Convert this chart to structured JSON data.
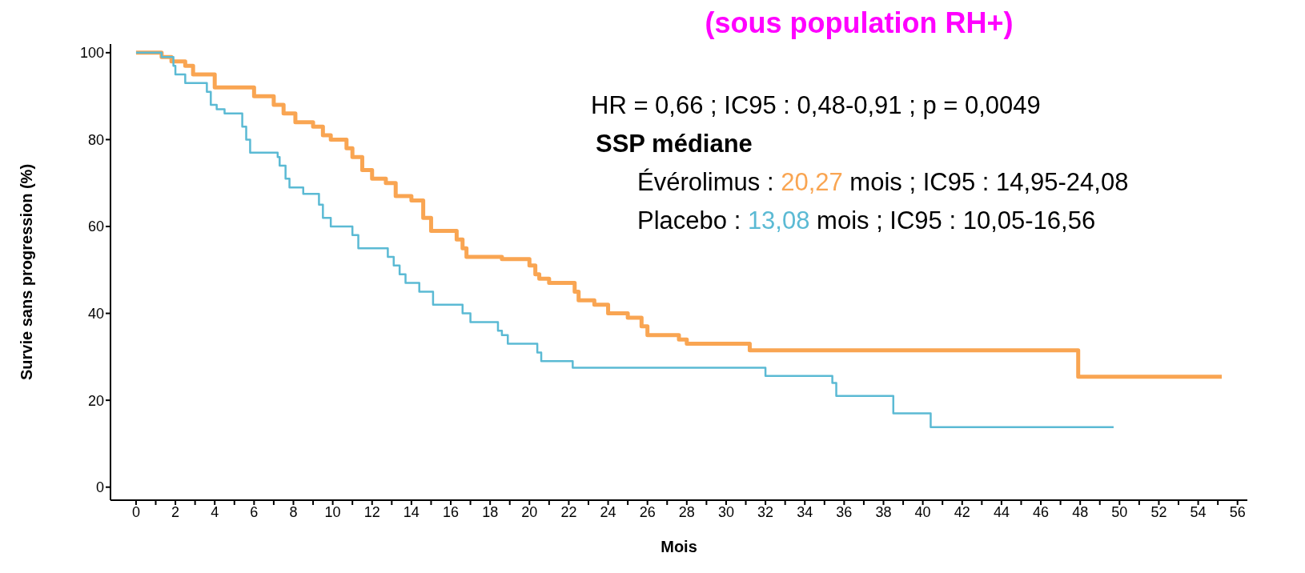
{
  "chart_data": {
    "type": "step",
    "title": "(sous population RH+)",
    "xlabel": "Mois",
    "ylabel": "Survie sans progression (%)",
    "xlim": [
      -1.3,
      56.5
    ],
    "ylim": [
      -3,
      102
    ],
    "xticks": [
      0,
      {
        "value": 1,
        "label": null
      },
      2,
      {
        "value": 3,
        "label": null
      },
      4,
      {
        "value": 5,
        "label": null
      },
      6,
      {
        "value": 7,
        "label": null
      },
      8,
      {
        "value": 9,
        "label": null
      },
      10,
      {
        "value": 11,
        "label": null
      },
      12,
      {
        "value": 13,
        "label": null
      },
      14,
      {
        "value": 15,
        "label": null
      },
      16,
      {
        "value": 17,
        "label": null
      },
      18,
      {
        "value": 19,
        "label": null
      },
      20,
      {
        "value": 21,
        "label": null
      },
      22,
      {
        "value": 23,
        "label": null
      },
      24,
      {
        "value": 25,
        "label": null
      },
      26,
      {
        "value": 27,
        "label": null
      },
      28,
      {
        "value": 29,
        "label": null
      },
      30,
      {
        "value": 31,
        "label": null
      },
      32,
      {
        "value": 33,
        "label": null
      },
      34,
      {
        "value": 35,
        "label": null
      },
      36,
      {
        "value": 37,
        "label": null
      },
      38,
      {
        "value": 39,
        "label": null
      },
      40,
      {
        "value": 41,
        "label": null
      },
      42,
      {
        "value": 43,
        "label": null
      },
      44,
      {
        "value": 45,
        "label": null
      },
      46,
      {
        "value": 47,
        "label": null
      },
      48,
      {
        "value": 49,
        "label": null
      },
      50,
      {
        "value": 51,
        "label": null
      },
      52,
      {
        "value": 53,
        "label": null
      },
      54,
      {
        "value": 55,
        "label": null
      },
      56
    ],
    "yticks": [
      0,
      20,
      40,
      60,
      80,
      100
    ],
    "marker": "none",
    "line_style": "solid",
    "series": [
      {
        "color": "#f9a552",
        "x": [
          0,
          1.3,
          1.8,
          2.5,
          2.9,
          4,
          6,
          7,
          7.5,
          8.1,
          9,
          9.5,
          9.9,
          10.7,
          11,
          11.5,
          12,
          12.7,
          13.2,
          14,
          14.6,
          15,
          16.3,
          16.6,
          16.8,
          18.6,
          20,
          20.3,
          20.5,
          21,
          22.3,
          22.5,
          23.3,
          24,
          25,
          25.7,
          26,
          27.6,
          28,
          31.2,
          47.9,
          55.2
        ],
        "values": [
          100,
          99,
          98,
          97,
          95,
          92,
          90,
          88,
          86,
          84,
          83,
          81,
          80,
          78,
          76,
          73,
          71,
          70,
          67,
          66,
          62,
          59,
          57,
          55,
          53,
          52.5,
          51,
          49,
          48,
          47,
          45,
          43,
          42,
          40,
          39,
          37,
          35,
          34,
          33,
          31.5,
          25.4,
          25.4
        ]
      },
      {
        "color": "#5bbad4",
        "x": [
          0,
          1.3,
          1.9,
          2,
          2.5,
          3.6,
          3.8,
          4.1,
          4.5,
          5.4,
          5.6,
          5.8,
          7.2,
          7.3,
          7.6,
          7.8,
          8.5,
          9.3,
          9.5,
          9.9,
          11,
          11.3,
          12.8,
          13.1,
          13.4,
          13.7,
          14.4,
          15.1,
          16.6,
          17,
          18.4,
          18.6,
          18.9,
          20.4,
          20.6,
          22.2,
          32,
          35.4,
          35.6,
          38.5,
          40.4,
          49.7
        ],
        "values": [
          100,
          99,
          97,
          95,
          93,
          91,
          88,
          87,
          86,
          83,
          80,
          77,
          76,
          74,
          71,
          69,
          67.5,
          65,
          62,
          60,
          58,
          55,
          53,
          51,
          49,
          47,
          45,
          42,
          40,
          38,
          36,
          35,
          33,
          31,
          29,
          27.5,
          25.6,
          24,
          21,
          17,
          13.8,
          13.8
        ]
      }
    ],
    "annotations": [
      "HR = 0,66 ; IC95 : 0,48-0,91 ; p = 0,0049",
      "SSP médiane",
      "Évérolimus : 20,27 mois ; IC95 : 14,95-24,08",
      "Placebo : 13,08 mois ; IC95 : 10,05-16,56"
    ]
  }
}
